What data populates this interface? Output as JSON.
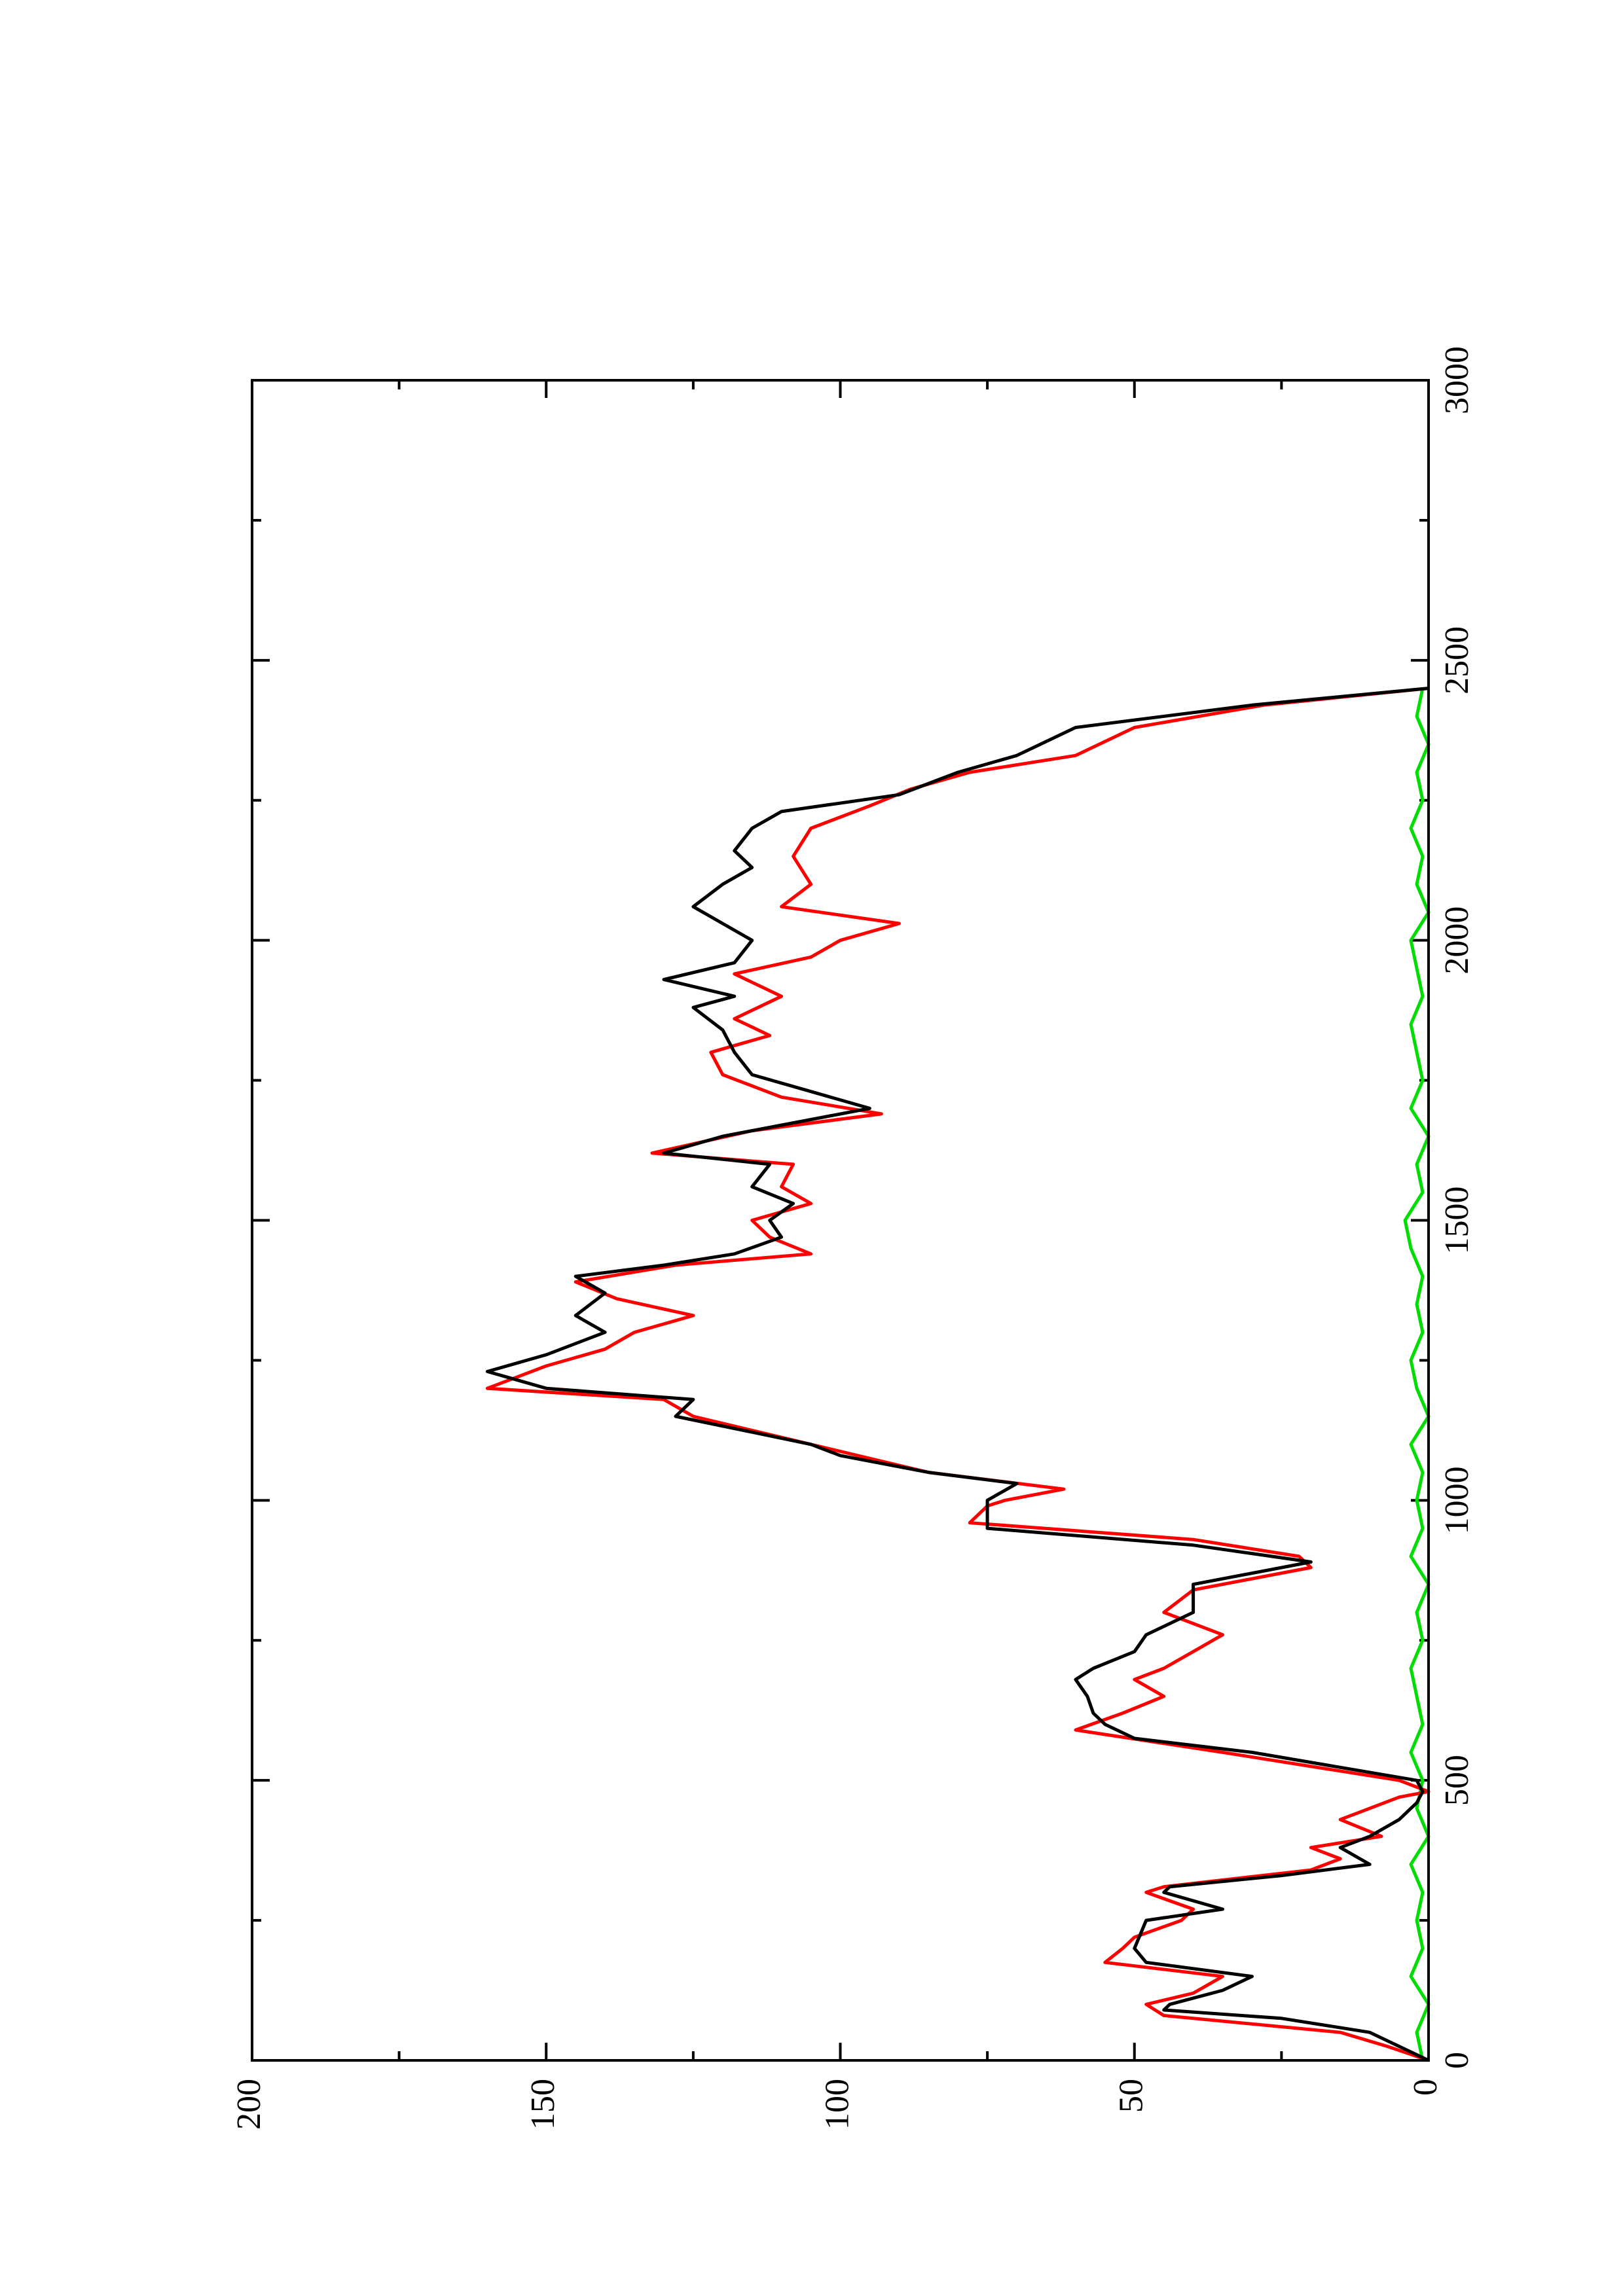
{
  "chart_data": {
    "type": "line",
    "xlim": [
      0,
      3000
    ],
    "xticks": [
      0,
      500,
      1000,
      1500,
      2000,
      2500,
      3000
    ],
    "xminorticks": [
      250,
      750,
      1250,
      1750,
      2250,
      2750
    ],
    "ylim": [
      0,
      200
    ],
    "yticks": [
      0,
      50,
      100,
      150,
      200
    ],
    "yminorticks": [
      25,
      75,
      125,
      175
    ],
    "rotation": -90,
    "series": [
      {
        "color": "#000000",
        "x": [
          0,
          25,
          50,
          75,
          90,
          100,
          125,
          150,
          175,
          200,
          250,
          270,
          300,
          310,
          330,
          350,
          380,
          400,
          430,
          460,
          480,
          500,
          550,
          575,
          600,
          620,
          650,
          680,
          700,
          730,
          760,
          800,
          850,
          890,
          920,
          950,
          1000,
          1030,
          1050,
          1080,
          1100,
          1150,
          1180,
          1200,
          1230,
          1260,
          1300,
          1330,
          1370,
          1400,
          1420,
          1440,
          1470,
          1500,
          1530,
          1560,
          1600,
          1620,
          1650,
          1680,
          1700,
          1730,
          1760,
          1800,
          1840,
          1880,
          1900,
          1930,
          1960,
          2000,
          2030,
          2060,
          2100,
          2130,
          2160,
          2200,
          2230,
          2260,
          2300,
          2330,
          2380,
          2420,
          2450
        ],
        "values": [
          0,
          5,
          10,
          25,
          45,
          44,
          35,
          30,
          48,
          50,
          48,
          35,
          45,
          44,
          25,
          10,
          15,
          10,
          5,
          2,
          1,
          2,
          30,
          50,
          55,
          57,
          58,
          60,
          57,
          50,
          48,
          40,
          40,
          20,
          40,
          75,
          75,
          70,
          85,
          100,
          105,
          128,
          125,
          150,
          160,
          150,
          140,
          145,
          140,
          145,
          130,
          118,
          110,
          112,
          108,
          115,
          112,
          130,
          120,
          105,
          95,
          105,
          115,
          118,
          120,
          125,
          118,
          130,
          118,
          115,
          120,
          125,
          120,
          115,
          118,
          115,
          110,
          90,
          80,
          70,
          60,
          30,
          0
        ]
      },
      {
        "color": "#ff0000",
        "x": [
          0,
          25,
          50,
          80,
          100,
          120,
          150,
          175,
          200,
          220,
          250,
          270,
          300,
          310,
          340,
          360,
          380,
          400,
          430,
          470,
          480,
          500,
          550,
          590,
          620,
          650,
          680,
          700,
          730,
          760,
          800,
          840,
          880,
          900,
          930,
          960,
          990,
          1000,
          1020,
          1050,
          1100,
          1150,
          1180,
          1200,
          1240,
          1270,
          1300,
          1330,
          1360,
          1390,
          1420,
          1440,
          1470,
          1500,
          1530,
          1560,
          1600,
          1620,
          1660,
          1690,
          1720,
          1760,
          1800,
          1830,
          1860,
          1900,
          1940,
          1970,
          2000,
          2030,
          2060,
          2100,
          2150,
          2200,
          2240,
          2270,
          2300,
          2330,
          2380,
          2420,
          2450
        ],
        "values": [
          0,
          7,
          15,
          45,
          48,
          40,
          35,
          55,
          52,
          50,
          42,
          40,
          48,
          45,
          20,
          15,
          20,
          8,
          15,
          5,
          0,
          5,
          35,
          60,
          52,
          45,
          50,
          45,
          40,
          35,
          45,
          40,
          20,
          22,
          40,
          78,
          75,
          72,
          62,
          85,
          105,
          125,
          130,
          160,
          150,
          140,
          135,
          125,
          138,
          145,
          128,
          105,
          112,
          115,
          105,
          110,
          108,
          132,
          115,
          93,
          110,
          120,
          122,
          112,
          118,
          110,
          118,
          105,
          100,
          90,
          110,
          105,
          108,
          105,
          95,
          88,
          78,
          60,
          50,
          28,
          0
        ]
      },
      {
        "color": "#00dd00",
        "x": [
          0,
          50,
          100,
          150,
          200,
          250,
          300,
          350,
          400,
          450,
          500,
          550,
          600,
          650,
          700,
          750,
          800,
          850,
          900,
          950,
          1000,
          1050,
          1100,
          1150,
          1200,
          1250,
          1300,
          1350,
          1400,
          1450,
          1500,
          1550,
          1600,
          1650,
          1700,
          1750,
          1800,
          1850,
          1900,
          1950,
          2000,
          2050,
          2100,
          2150,
          2200,
          2250,
          2300,
          2350,
          2400,
          2450
        ],
        "values": [
          1,
          2,
          0,
          3,
          1,
          2,
          1,
          3,
          0,
          2,
          1,
          3,
          1,
          2,
          3,
          1,
          2,
          0,
          3,
          1,
          2,
          1,
          3,
          0,
          2,
          3,
          1,
          2,
          1,
          3,
          4,
          1,
          2,
          0,
          3,
          1,
          2,
          3,
          1,
          2,
          3,
          0,
          2,
          1,
          3,
          1,
          2,
          0,
          2,
          1
        ]
      }
    ]
  }
}
